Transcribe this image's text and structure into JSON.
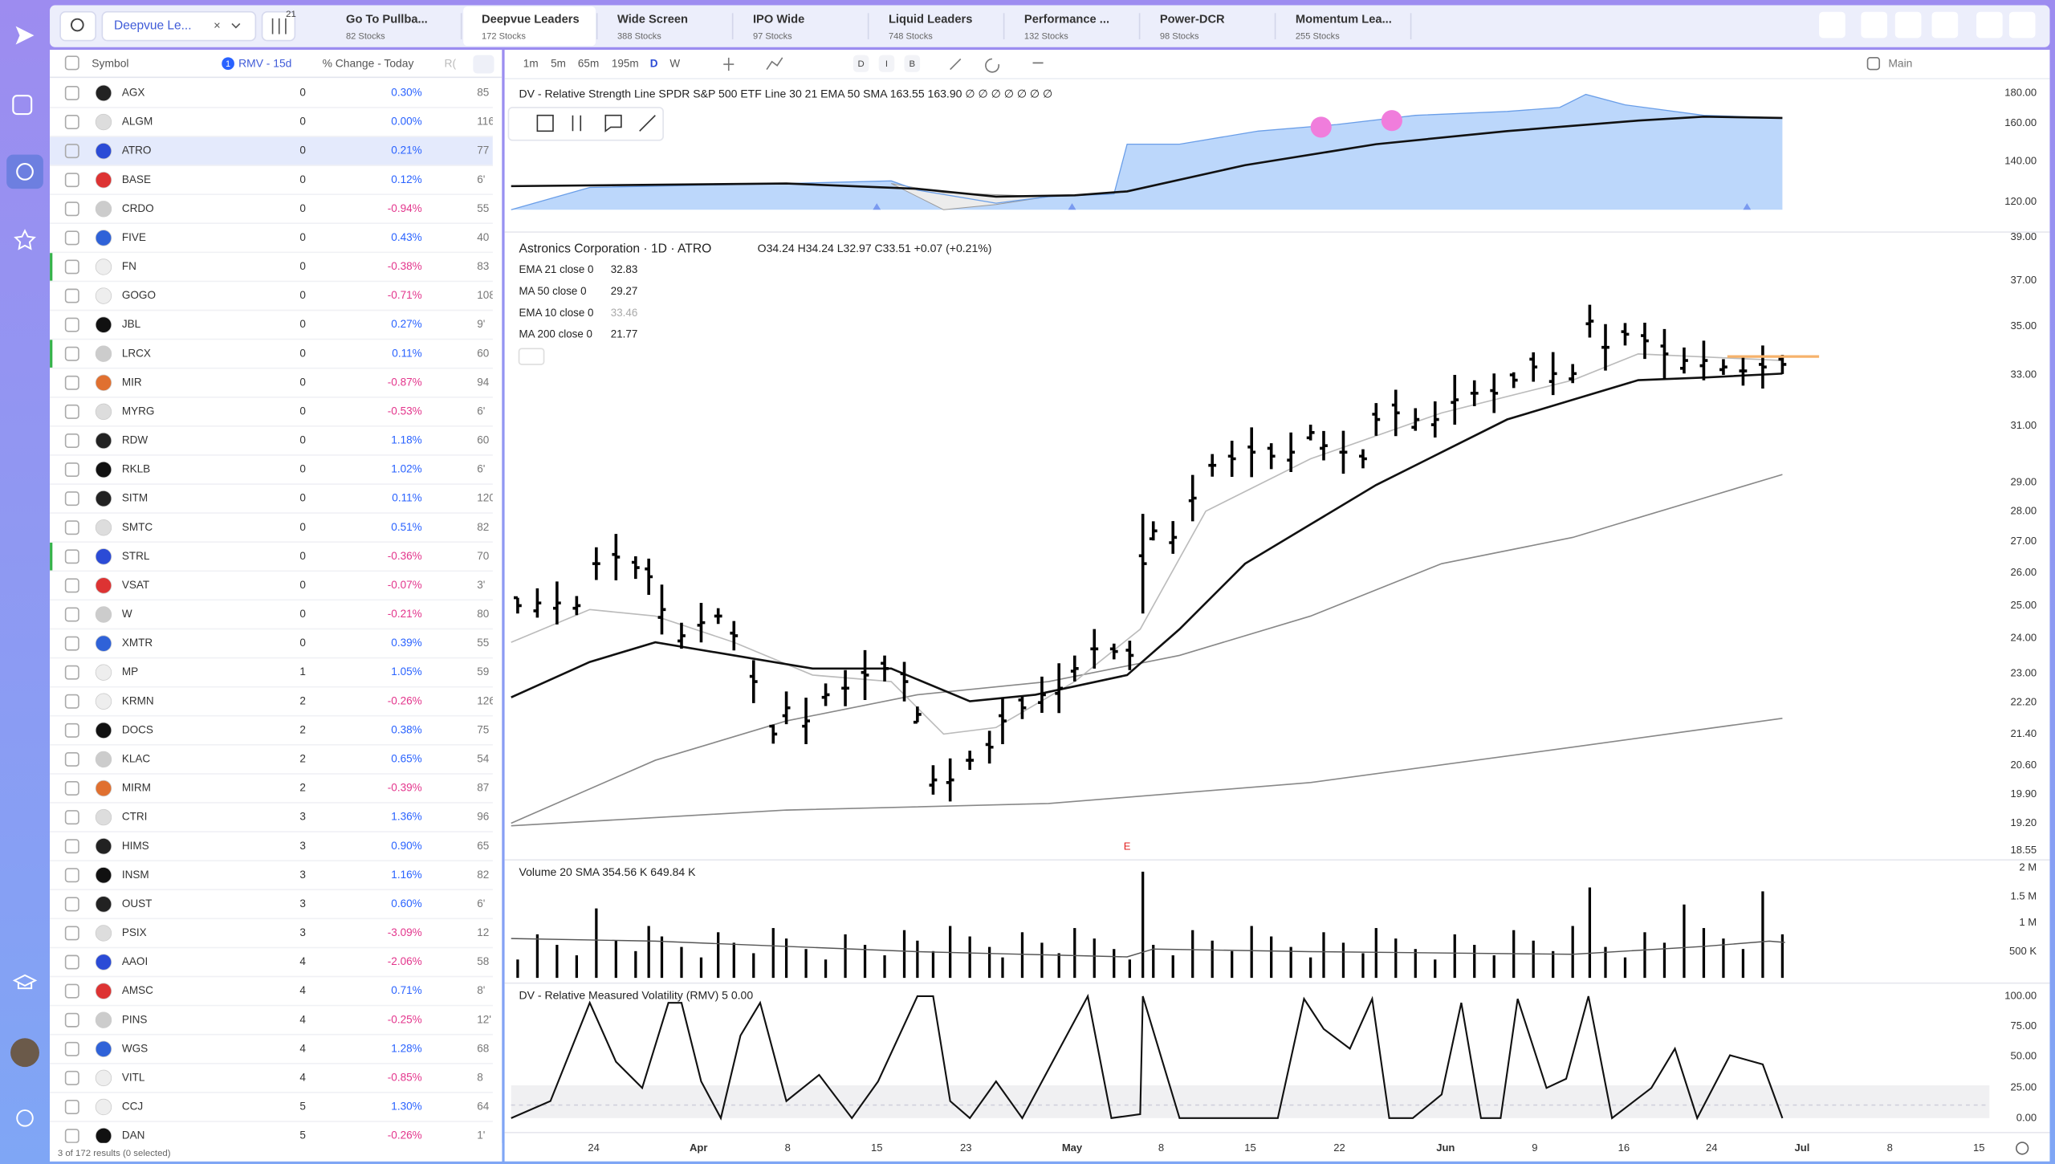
{
  "toolbar": {
    "watchlist": "Deepvue Le...",
    "filter_count": 21
  },
  "tabs": [
    {
      "name": "Go To Pullba...",
      "count": "82 Stocks"
    },
    {
      "name": "Deepvue Leaders",
      "count": "172 Stocks"
    },
    {
      "name": "Wide Screen",
      "count": "388 Stocks"
    },
    {
      "name": "IPO Wide",
      "count": "97 Stocks"
    },
    {
      "name": "Liquid Leaders",
      "count": "748 Stocks"
    },
    {
      "name": "Performance ...",
      "count": "132 Stocks"
    },
    {
      "name": "Power-DCR",
      "count": "98 Stocks"
    },
    {
      "name": "Momentum Lea...",
      "count": "255 Stocks"
    }
  ],
  "watchlist": {
    "columns": [
      "Symbol",
      "RMV - 15d",
      "% Change - Today",
      "R("
    ],
    "sort_badge": 1,
    "rows": [
      [
        "AGX",
        0,
        "0.30%",
        "85"
      ],
      [
        "ALGM",
        0,
        "0.00%",
        "116"
      ],
      [
        "ATRO",
        0,
        "0.21%",
        "77"
      ],
      [
        "BASE",
        0,
        "0.12%",
        "6'"
      ],
      [
        "CRDO",
        0,
        "-0.94%",
        "55"
      ],
      [
        "FIVE",
        0,
        "0.43%",
        "40"
      ],
      [
        "FN",
        0,
        "-0.38%",
        "83"
      ],
      [
        "GOGO",
        0,
        "-0.71%",
        "108"
      ],
      [
        "JBL",
        0,
        "0.27%",
        "9'"
      ],
      [
        "LRCX",
        0,
        "0.11%",
        "60"
      ],
      [
        "MIR",
        0,
        "-0.87%",
        "94"
      ],
      [
        "MYRG",
        0,
        "-0.53%",
        "6'"
      ],
      [
        "RDW",
        0,
        "1.18%",
        "60"
      ],
      [
        "RKLB",
        0,
        "1.02%",
        "6'"
      ],
      [
        "SITM",
        0,
        "0.11%",
        "120"
      ],
      [
        "SMTC",
        0,
        "0.51%",
        "82"
      ],
      [
        "STRL",
        0,
        "-0.36%",
        "70"
      ],
      [
        "VSAT",
        0,
        "-0.07%",
        "3'"
      ],
      [
        "W",
        0,
        "-0.21%",
        "80"
      ],
      [
        "XMTR",
        0,
        "0.39%",
        "55"
      ],
      [
        "MP",
        1,
        "1.05%",
        "59"
      ],
      [
        "KRMN",
        2,
        "-0.26%",
        "126"
      ],
      [
        "DOCS",
        2,
        "0.38%",
        "75"
      ],
      [
        "KLAC",
        2,
        "0.65%",
        "54"
      ],
      [
        "MIRM",
        2,
        "-0.39%",
        "87"
      ],
      [
        "CTRI",
        3,
        "1.36%",
        "96"
      ],
      [
        "HIMS",
        3,
        "0.90%",
        "65"
      ],
      [
        "INSM",
        3,
        "1.16%",
        "82"
      ],
      [
        "OUST",
        3,
        "0.60%",
        "6'"
      ],
      [
        "PSIX",
        3,
        "-3.09%",
        "12"
      ],
      [
        "AAOI",
        4,
        "-2.06%",
        "58"
      ],
      [
        "AMSC",
        4,
        "0.71%",
        "8'"
      ],
      [
        "PINS",
        4,
        "-0.25%",
        "12'"
      ],
      [
        "WGS",
        4,
        "1.28%",
        "68"
      ],
      [
        "VITL",
        4,
        "-0.85%",
        "8"
      ],
      [
        "CCJ",
        5,
        "1.30%",
        "64"
      ],
      [
        "DAN",
        5,
        "-0.26%",
        "1'"
      ]
    ],
    "footer": "3 of 172 results (0 selected)"
  },
  "chart_toolbar": {
    "intervals": [
      "1m",
      "5m",
      "65m",
      "195m",
      "D",
      "W"
    ],
    "toggles": [
      "D",
      "I",
      "B"
    ],
    "layout": "Main"
  },
  "rs_panel": {
    "legend": "DV - Relative Strength Line SPDR S&P 500 ETF Line 30 21 EMA 50 SMA  163.55  163.90  ∅ ∅ ∅ ∅ ∅ ∅ ∅",
    "ticks": [
      "180.00",
      "160.00",
      "140.00",
      "120.00"
    ]
  },
  "price_panel": {
    "title": "Astronics Corporation · 1D · ATRO",
    "ohlc": "O34.24 H34.24 L32.97 C33.51 +0.07 (+0.21%)",
    "indicators": [
      [
        "EMA 21 close 0",
        "32.83"
      ],
      [
        "MA 50 close 0",
        "29.27"
      ],
      [
        "EMA 10 close 0",
        "33.46"
      ],
      [
        "MA 200 close 0",
        "21.77"
      ]
    ],
    "ticks": [
      "39.00",
      "37.00",
      "35.00",
      "33.00",
      "31.00",
      "29.00",
      "28.00",
      "27.00",
      "26.00",
      "25.00",
      "24.00",
      "23.00",
      "22.20",
      "21.40",
      "20.60",
      "19.90",
      "19.20",
      "18.55"
    ],
    "earnings": "E"
  },
  "volume_panel": {
    "legend": "Volume 20 SMA  354.56 K  649.84 K",
    "ticks": [
      "2 M",
      "1.5 M",
      "1 M",
      "500 K"
    ]
  },
  "rmv_panel": {
    "legend": "DV - Relative Measured Volatility (RMV) 5  0.00",
    "ticks": [
      "100.00",
      "75.00",
      "50.00",
      "25.00",
      "0.00"
    ]
  },
  "x_axis": [
    "24",
    "Apr",
    "8",
    "15",
    "23",
    "May",
    "8",
    "15",
    "22",
    "Jun",
    "9",
    "16",
    "24",
    "Jul",
    "8",
    "15"
  ]
}
